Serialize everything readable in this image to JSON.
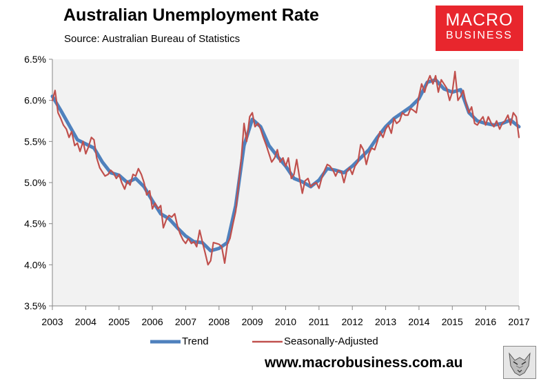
{
  "chart_data": {
    "type": "line",
    "title": "Australian Unemployment Rate",
    "subtitle": "Source: Australian Bureau of Statistics",
    "xlabel": "",
    "ylabel": "",
    "xlim": [
      2003,
      2017
    ],
    "ylim": [
      3.5,
      6.5
    ],
    "xticks": [
      "2003",
      "2004",
      "2005",
      "2006",
      "2007",
      "2008",
      "2009",
      "2010",
      "2011",
      "2012",
      "2013",
      "2014",
      "2015",
      "2016",
      "2017"
    ],
    "yticks": [
      "3.5%",
      "4.0%",
      "4.5%",
      "5.0%",
      "5.5%",
      "6.0%",
      "6.5%"
    ],
    "grid": false,
    "legend_position": "bottom",
    "series": [
      {
        "name": "Trend",
        "color": "#4f81bd",
        "points": [
          [
            2003.0,
            6.05
          ],
          [
            2003.25,
            5.88
          ],
          [
            2003.5,
            5.7
          ],
          [
            2003.75,
            5.52
          ],
          [
            2004.0,
            5.47
          ],
          [
            2004.25,
            5.42
          ],
          [
            2004.5,
            5.25
          ],
          [
            2004.75,
            5.12
          ],
          [
            2005.0,
            5.09
          ],
          [
            2005.25,
            5.0
          ],
          [
            2005.5,
            5.05
          ],
          [
            2005.75,
            4.95
          ],
          [
            2006.0,
            4.78
          ],
          [
            2006.25,
            4.62
          ],
          [
            2006.5,
            4.56
          ],
          [
            2006.75,
            4.45
          ],
          [
            2007.0,
            4.35
          ],
          [
            2007.25,
            4.28
          ],
          [
            2007.5,
            4.27
          ],
          [
            2007.75,
            4.17
          ],
          [
            2008.0,
            4.2
          ],
          [
            2008.25,
            4.27
          ],
          [
            2008.5,
            4.72
          ],
          [
            2008.75,
            5.45
          ],
          [
            2009.0,
            5.77
          ],
          [
            2009.25,
            5.68
          ],
          [
            2009.5,
            5.45
          ],
          [
            2009.75,
            5.32
          ],
          [
            2010.0,
            5.2
          ],
          [
            2010.25,
            5.05
          ],
          [
            2010.5,
            5.01
          ],
          [
            2010.75,
            4.95
          ],
          [
            2011.0,
            5.03
          ],
          [
            2011.25,
            5.17
          ],
          [
            2011.5,
            5.15
          ],
          [
            2011.75,
            5.12
          ],
          [
            2012.0,
            5.2
          ],
          [
            2012.25,
            5.3
          ],
          [
            2012.5,
            5.4
          ],
          [
            2012.75,
            5.55
          ],
          [
            2013.0,
            5.68
          ],
          [
            2013.25,
            5.78
          ],
          [
            2013.5,
            5.85
          ],
          [
            2013.75,
            5.92
          ],
          [
            2014.0,
            6.02
          ],
          [
            2014.25,
            6.22
          ],
          [
            2014.5,
            6.25
          ],
          [
            2014.75,
            6.14
          ],
          [
            2015.0,
            6.1
          ],
          [
            2015.25,
            6.13
          ],
          [
            2015.5,
            5.85
          ],
          [
            2015.75,
            5.75
          ],
          [
            2016.0,
            5.72
          ],
          [
            2016.25,
            5.7
          ],
          [
            2016.5,
            5.72
          ],
          [
            2016.75,
            5.76
          ],
          [
            2017.0,
            5.68
          ]
        ]
      },
      {
        "name": "Seasonally-Adjusted",
        "color": "#c0504d",
        "points": [
          [
            2003.0,
            6.0
          ],
          [
            2003.08,
            6.12
          ],
          [
            2003.17,
            5.85
          ],
          [
            2003.25,
            5.78
          ],
          [
            2003.33,
            5.7
          ],
          [
            2003.42,
            5.65
          ],
          [
            2003.5,
            5.55
          ],
          [
            2003.58,
            5.62
          ],
          [
            2003.67,
            5.45
          ],
          [
            2003.75,
            5.48
          ],
          [
            2003.83,
            5.38
          ],
          [
            2003.92,
            5.5
          ],
          [
            2004.0,
            5.35
          ],
          [
            2004.08,
            5.43
          ],
          [
            2004.17,
            5.55
          ],
          [
            2004.25,
            5.52
          ],
          [
            2004.33,
            5.3
          ],
          [
            2004.42,
            5.18
          ],
          [
            2004.5,
            5.13
          ],
          [
            2004.58,
            5.08
          ],
          [
            2004.67,
            5.1
          ],
          [
            2004.75,
            5.15
          ],
          [
            2004.83,
            5.12
          ],
          [
            2004.92,
            5.05
          ],
          [
            2005.0,
            5.1
          ],
          [
            2005.08,
            5.0
          ],
          [
            2005.17,
            4.92
          ],
          [
            2005.25,
            5.02
          ],
          [
            2005.33,
            4.97
          ],
          [
            2005.42,
            5.1
          ],
          [
            2005.5,
            5.08
          ],
          [
            2005.58,
            5.17
          ],
          [
            2005.67,
            5.1
          ],
          [
            2005.75,
            5.0
          ],
          [
            2005.83,
            4.85
          ],
          [
            2005.92,
            4.9
          ],
          [
            2006.0,
            4.68
          ],
          [
            2006.08,
            4.75
          ],
          [
            2006.17,
            4.68
          ],
          [
            2006.25,
            4.72
          ],
          [
            2006.33,
            4.45
          ],
          [
            2006.42,
            4.55
          ],
          [
            2006.5,
            4.6
          ],
          [
            2006.58,
            4.58
          ],
          [
            2006.67,
            4.62
          ],
          [
            2006.75,
            4.48
          ],
          [
            2006.83,
            4.38
          ],
          [
            2006.92,
            4.3
          ],
          [
            2007.0,
            4.26
          ],
          [
            2007.08,
            4.32
          ],
          [
            2007.17,
            4.26
          ],
          [
            2007.25,
            4.28
          ],
          [
            2007.33,
            4.22
          ],
          [
            2007.42,
            4.42
          ],
          [
            2007.5,
            4.28
          ],
          [
            2007.58,
            4.15
          ],
          [
            2007.67,
            4.0
          ],
          [
            2007.75,
            4.05
          ],
          [
            2007.83,
            4.27
          ],
          [
            2007.92,
            4.26
          ],
          [
            2008.0,
            4.25
          ],
          [
            2008.08,
            4.22
          ],
          [
            2008.17,
            4.02
          ],
          [
            2008.25,
            4.25
          ],
          [
            2008.33,
            4.32
          ],
          [
            2008.42,
            4.5
          ],
          [
            2008.5,
            4.65
          ],
          [
            2008.58,
            4.95
          ],
          [
            2008.67,
            5.3
          ],
          [
            2008.75,
            5.72
          ],
          [
            2008.83,
            5.5
          ],
          [
            2008.92,
            5.8
          ],
          [
            2009.0,
            5.85
          ],
          [
            2009.08,
            5.68
          ],
          [
            2009.17,
            5.72
          ],
          [
            2009.25,
            5.65
          ],
          [
            2009.33,
            5.55
          ],
          [
            2009.42,
            5.45
          ],
          [
            2009.5,
            5.35
          ],
          [
            2009.58,
            5.25
          ],
          [
            2009.67,
            5.3
          ],
          [
            2009.75,
            5.4
          ],
          [
            2009.83,
            5.25
          ],
          [
            2009.92,
            5.3
          ],
          [
            2010.0,
            5.2
          ],
          [
            2010.08,
            5.3
          ],
          [
            2010.17,
            5.05
          ],
          [
            2010.25,
            5.1
          ],
          [
            2010.33,
            5.28
          ],
          [
            2010.42,
            5.05
          ],
          [
            2010.5,
            4.87
          ],
          [
            2010.58,
            5.02
          ],
          [
            2010.67,
            5.05
          ],
          [
            2010.75,
            4.95
          ],
          [
            2010.83,
            4.98
          ],
          [
            2010.92,
            5.0
          ],
          [
            2011.0,
            4.93
          ],
          [
            2011.08,
            5.05
          ],
          [
            2011.17,
            5.15
          ],
          [
            2011.25,
            5.22
          ],
          [
            2011.33,
            5.2
          ],
          [
            2011.42,
            5.15
          ],
          [
            2011.5,
            5.08
          ],
          [
            2011.58,
            5.15
          ],
          [
            2011.67,
            5.13
          ],
          [
            2011.75,
            5.0
          ],
          [
            2011.83,
            5.13
          ],
          [
            2011.92,
            5.18
          ],
          [
            2012.0,
            5.1
          ],
          [
            2012.08,
            5.2
          ],
          [
            2012.17,
            5.25
          ],
          [
            2012.25,
            5.46
          ],
          [
            2012.33,
            5.4
          ],
          [
            2012.42,
            5.22
          ],
          [
            2012.5,
            5.35
          ],
          [
            2012.58,
            5.42
          ],
          [
            2012.67,
            5.4
          ],
          [
            2012.75,
            5.5
          ],
          [
            2012.83,
            5.62
          ],
          [
            2012.92,
            5.55
          ],
          [
            2013.0,
            5.65
          ],
          [
            2013.08,
            5.7
          ],
          [
            2013.17,
            5.6
          ],
          [
            2013.25,
            5.78
          ],
          [
            2013.33,
            5.72
          ],
          [
            2013.42,
            5.75
          ],
          [
            2013.5,
            5.85
          ],
          [
            2013.58,
            5.82
          ],
          [
            2013.67,
            5.82
          ],
          [
            2013.75,
            5.9
          ],
          [
            2013.83,
            5.88
          ],
          [
            2013.92,
            5.85
          ],
          [
            2014.0,
            6.05
          ],
          [
            2014.08,
            6.2
          ],
          [
            2014.17,
            6.1
          ],
          [
            2014.25,
            6.22
          ],
          [
            2014.33,
            6.3
          ],
          [
            2014.42,
            6.2
          ],
          [
            2014.5,
            6.3
          ],
          [
            2014.58,
            6.1
          ],
          [
            2014.67,
            6.25
          ],
          [
            2014.75,
            6.2
          ],
          [
            2014.83,
            6.15
          ],
          [
            2014.92,
            6.0
          ],
          [
            2015.0,
            6.1
          ],
          [
            2015.08,
            6.35
          ],
          [
            2015.17,
            6.0
          ],
          [
            2015.25,
            6.05
          ],
          [
            2015.33,
            6.12
          ],
          [
            2015.42,
            5.95
          ],
          [
            2015.5,
            5.85
          ],
          [
            2015.58,
            5.92
          ],
          [
            2015.67,
            5.72
          ],
          [
            2015.75,
            5.7
          ],
          [
            2015.83,
            5.75
          ],
          [
            2015.92,
            5.8
          ],
          [
            2016.0,
            5.7
          ],
          [
            2016.08,
            5.8
          ],
          [
            2016.17,
            5.72
          ],
          [
            2016.25,
            5.68
          ],
          [
            2016.33,
            5.75
          ],
          [
            2016.42,
            5.65
          ],
          [
            2016.5,
            5.72
          ],
          [
            2016.58,
            5.75
          ],
          [
            2016.67,
            5.82
          ],
          [
            2016.75,
            5.7
          ],
          [
            2016.83,
            5.85
          ],
          [
            2016.92,
            5.8
          ],
          [
            2017.0,
            5.55
          ]
        ]
      }
    ]
  },
  "branding": {
    "logo_line1": "MACRO",
    "logo_line2": "BUSINESS",
    "logo_color": "#e8262d",
    "url": "www.macrobusiness.com.au",
    "mascot": "wolf-icon"
  },
  "plot_background": "#f2f2f2"
}
